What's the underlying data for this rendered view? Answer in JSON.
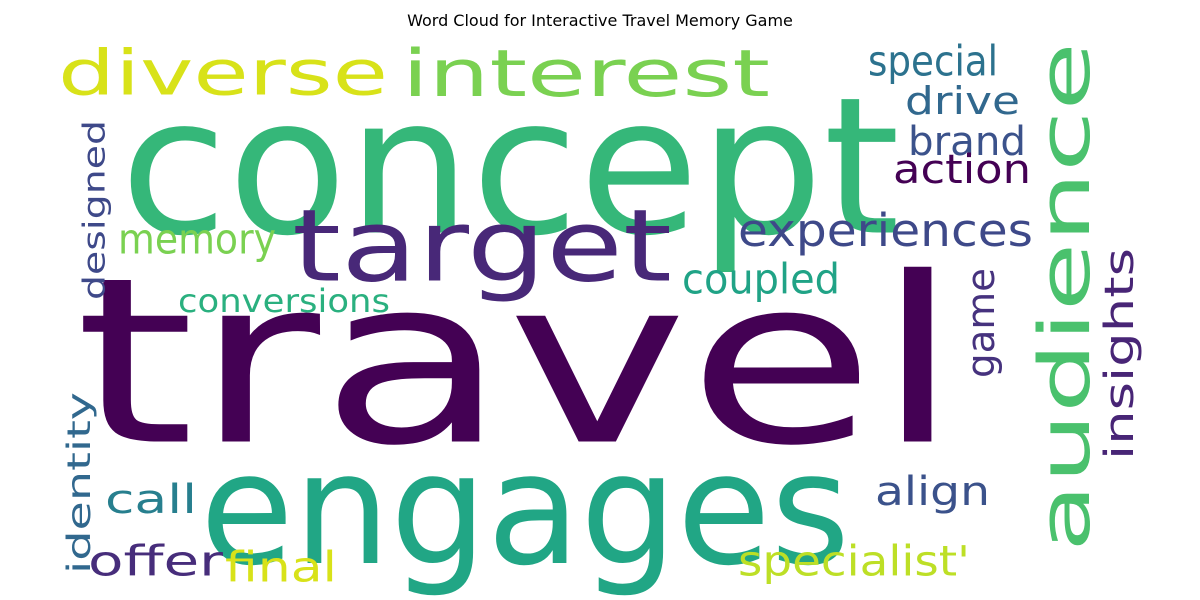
{
  "title": "Word Cloud for Interactive Travel Memory Game",
  "words": [
    {
      "text": "travel",
      "color": "#440154"
    },
    {
      "text": "concept",
      "color": "#35b779"
    },
    {
      "text": "engages",
      "color": "#21a685"
    },
    {
      "text": "audience",
      "color": "#4ac16d"
    },
    {
      "text": "target",
      "color": "#482878"
    },
    {
      "text": "diverse",
      "color": "#d8e219"
    },
    {
      "text": "interest",
      "color": "#7ad151"
    },
    {
      "text": "special",
      "color": "#2c728e"
    },
    {
      "text": "drive",
      "color": "#31688e"
    },
    {
      "text": "brand",
      "color": "#3b528b"
    },
    {
      "text": "action",
      "color": "#440154"
    },
    {
      "text": "experiences",
      "color": "#3e4989"
    },
    {
      "text": "memory",
      "color": "#7ad151"
    },
    {
      "text": "designed",
      "color": "#3e4989"
    },
    {
      "text": "coupled",
      "color": "#20a386"
    },
    {
      "text": "conversions",
      "color": "#2ab07f"
    },
    {
      "text": "game",
      "color": "#46327e"
    },
    {
      "text": "insights",
      "color": "#482576"
    },
    {
      "text": "identity",
      "color": "#31688e"
    },
    {
      "text": "call",
      "color": "#277f8e"
    },
    {
      "text": "align",
      "color": "#3b528b"
    },
    {
      "text": "offer",
      "color": "#472d7b"
    },
    {
      "text": "final",
      "color": "#d8e219"
    },
    {
      "text": "specialist'",
      "color": "#bddf26"
    }
  ]
}
